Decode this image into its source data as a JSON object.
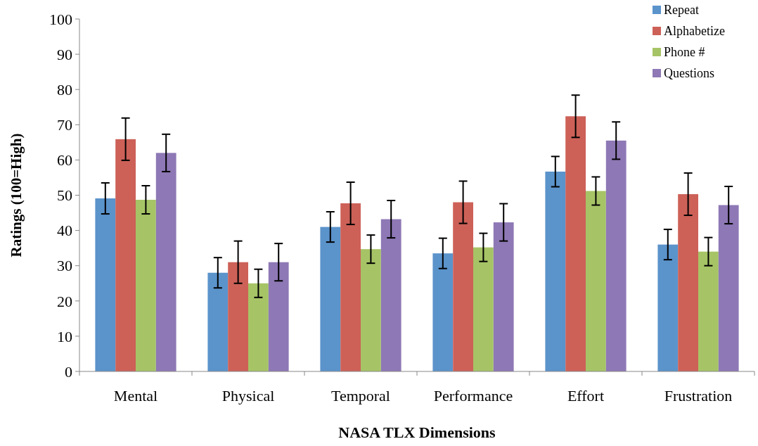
{
  "chart_data": {
    "type": "bar",
    "xlabel": "NASA TLX Dimensions",
    "ylabel": "Ratings (100=High)",
    "categories": [
      "Mental",
      "Physical",
      "Temporal",
      "Performance",
      "Effort",
      "Frustration"
    ],
    "series": [
      {
        "name": "Repeat",
        "color": "#5b93cb",
        "values": [
          49.1,
          28,
          41,
          33.5,
          56.7,
          36
        ],
        "errors": [
          4.4,
          4.3,
          4.3,
          4.3,
          4.3,
          4.3
        ]
      },
      {
        "name": "Alphabetize",
        "color": "#cd6158",
        "values": [
          65.9,
          31,
          47.7,
          48,
          72.4,
          50.3
        ],
        "errors": [
          6,
          6,
          6,
          6,
          6,
          6
        ]
      },
      {
        "name": "Phone #",
        "color": "#a6c466",
        "values": [
          48.7,
          25,
          34.7,
          35.2,
          51.2,
          34
        ],
        "errors": [
          4,
          4,
          4,
          4,
          4,
          4
        ]
      },
      {
        "name": "Questions",
        "color": "#8e78b5",
        "values": [
          62,
          31,
          43.2,
          42.3,
          65.5,
          47.2
        ],
        "errors": [
          5.3,
          5.3,
          5.3,
          5.3,
          5.3,
          5.3
        ]
      }
    ],
    "ylim": [
      0,
      100
    ],
    "yticks": [
      0,
      10,
      20,
      30,
      40,
      50,
      60,
      70,
      80,
      90,
      100
    ],
    "grid": false,
    "legend": "top right"
  }
}
